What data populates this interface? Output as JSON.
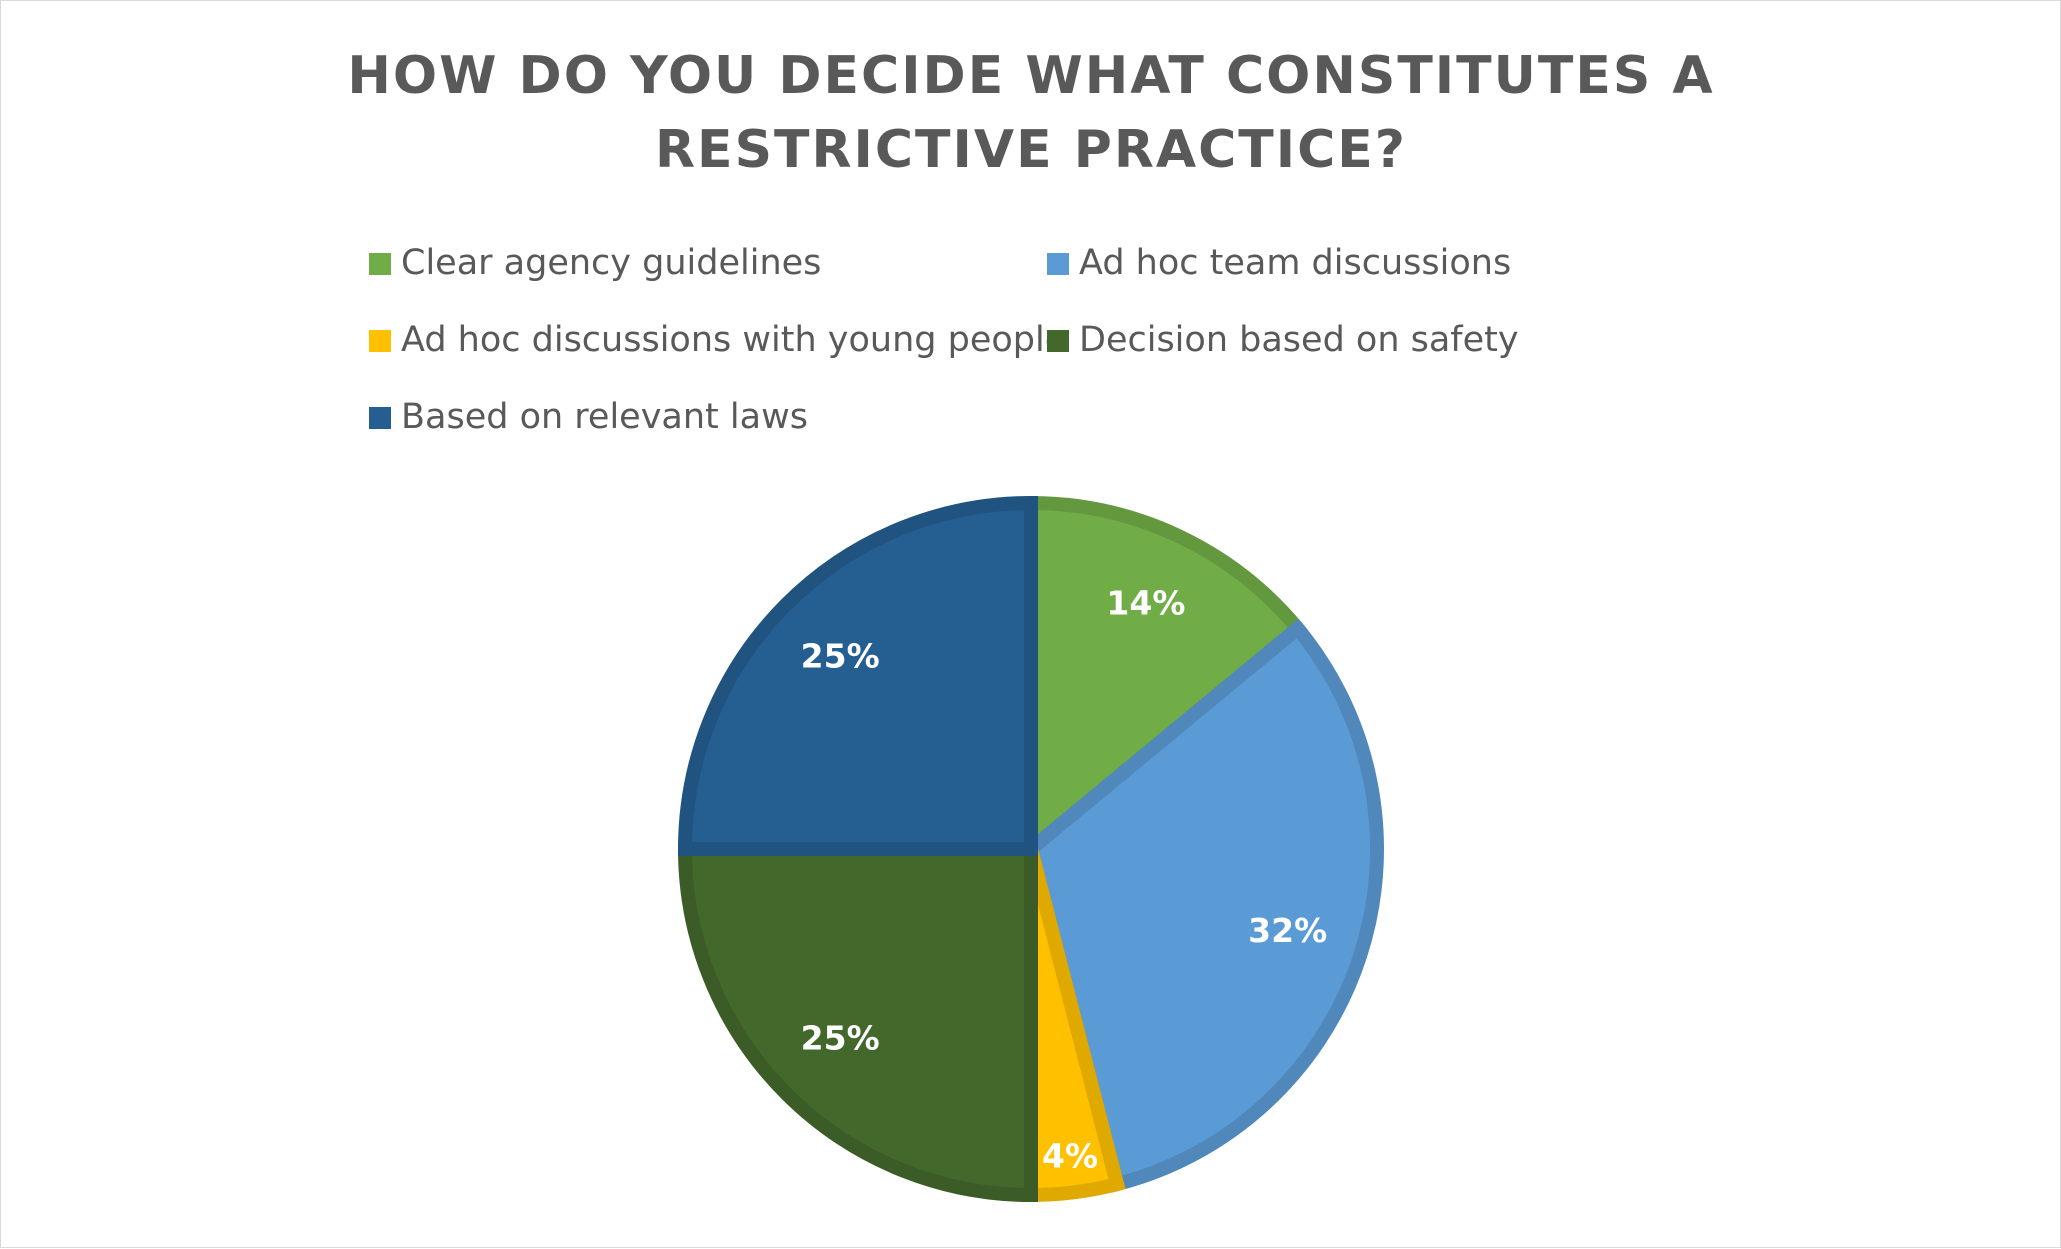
{
  "chart_data": {
    "type": "pie",
    "title": "HOW DO YOU DECIDE WHAT CONSTITUTES A RESTRICTIVE PRACTICE?",
    "categories": [
      "Clear agency guidelines",
      "Ad hoc team discussions",
      "Ad hoc discussions with young people",
      "Decision based on safety",
      "Based on relevant laws"
    ],
    "values": [
      14,
      32,
      4,
      25,
      25
    ],
    "value_labels": [
      "14%",
      "32%",
      "4%",
      "25%",
      "25%"
    ],
    "colors": [
      "#70ad47",
      "#5b9bd5",
      "#ffc000",
      "#43682b",
      "#255e91"
    ],
    "legend": "top"
  }
}
